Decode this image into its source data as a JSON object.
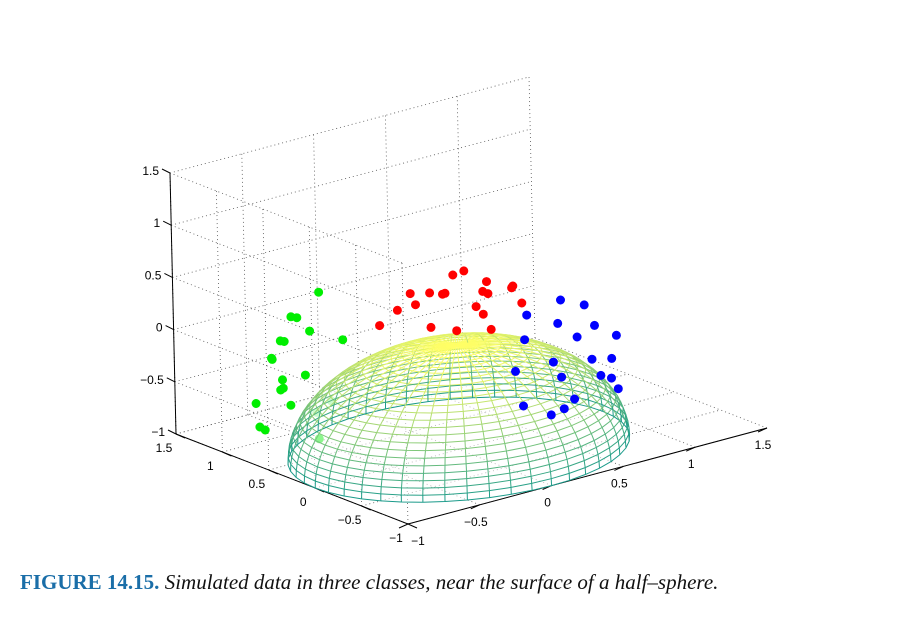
{
  "caption": {
    "label": "FIGURE 14.15.",
    "text": "Simulated data in three classes, near the surface of a half–sphere."
  },
  "chart_data": {
    "type": "scatter",
    "projection": "3d",
    "title": "",
    "xlabel": "",
    "ylabel": "",
    "zlabel": "",
    "xlim": [
      -1,
      1.5
    ],
    "ylim": [
      -1,
      1.5
    ],
    "zlim": [
      -1,
      1.5
    ],
    "x_ticks": [
      "−1",
      "−0.5",
      "0",
      "0.5",
      "1",
      "1.5"
    ],
    "y_ticks": [
      "−1",
      "−0.5",
      "0",
      "0.5",
      "1",
      "1.5"
    ],
    "z_ticks": [
      "−1",
      "−0.5",
      "0",
      "0.5",
      "1",
      "1.5"
    ],
    "grid": true,
    "surface": {
      "shape": "half-sphere",
      "center": [
        0,
        0,
        -1
      ],
      "radius": 1,
      "colormap_bottom": "#1a9a8a",
      "colormap_top": "#ffff66"
    },
    "series": [
      {
        "color": "#ff0000",
        "points": [
          [
            -0.12,
            -0.05,
            0.55
          ],
          [
            0.05,
            0.1,
            0.62
          ],
          [
            0.15,
            -0.12,
            0.48
          ],
          [
            -0.2,
            0.12,
            0.42
          ],
          [
            0.25,
            0.05,
            0.5
          ],
          [
            -0.05,
            0.2,
            0.45
          ],
          [
            0.3,
            -0.25,
            0.38
          ],
          [
            -0.3,
            -0.2,
            0.35
          ],
          [
            0.0,
            -0.3,
            0.4
          ],
          [
            0.12,
            0.3,
            0.35
          ],
          [
            -0.18,
            0.35,
            0.28
          ],
          [
            0.35,
            0.25,
            0.3
          ],
          [
            0.05,
            -0.02,
            0.7
          ],
          [
            -0.28,
            0.05,
            0.58
          ],
          [
            0.2,
            -0.3,
            0.58
          ],
          [
            0.4,
            0.0,
            0.42
          ],
          [
            -0.08,
            -0.35,
            0.52
          ],
          [
            0.1,
            0.15,
            0.05
          ],
          [
            0.18,
            -0.1,
            0.12
          ],
          [
            -0.35,
            0.28,
            0.22
          ]
        ]
      },
      {
        "color": "#0000ff",
        "points": [
          [
            0.1,
            -0.95,
            0.5
          ],
          [
            0.2,
            -1.0,
            0.35
          ],
          [
            -0.1,
            -0.9,
            0.4
          ],
          [
            0.35,
            -0.85,
            0.55
          ],
          [
            0.0,
            -1.05,
            0.2
          ],
          [
            0.3,
            -1.0,
            0.1
          ],
          [
            0.45,
            -0.8,
            0.3
          ],
          [
            -0.2,
            -0.95,
            0.15
          ],
          [
            0.15,
            -0.9,
            -0.05
          ],
          [
            0.5,
            -0.9,
            0.0
          ],
          [
            0.25,
            -0.75,
            0.6
          ],
          [
            -0.05,
            -0.85,
            0.6
          ],
          [
            0.4,
            -1.05,
            -0.1
          ],
          [
            0.6,
            -0.8,
            0.15
          ],
          [
            0.1,
            -1.0,
            -0.3
          ],
          [
            0.3,
            -0.8,
            -0.35
          ],
          [
            0.55,
            -0.7,
            -0.25
          ],
          [
            -0.15,
            -0.95,
            -0.2
          ],
          [
            0.2,
            -0.7,
            -0.5
          ],
          [
            0.7,
            -0.65,
            -0.45
          ]
        ]
      },
      {
        "color": "#00ee00",
        "points": [
          [
            -0.95,
            0.1,
            0.45
          ],
          [
            -1.0,
            0.3,
            0.3
          ],
          [
            -0.9,
            0.5,
            0.2
          ],
          [
            -0.85,
            -0.1,
            0.4
          ],
          [
            -1.05,
            0.0,
            0.1
          ],
          [
            -0.9,
            0.6,
            0.0
          ],
          [
            -0.8,
            0.75,
            -0.1
          ],
          [
            -0.95,
            0.4,
            -0.2
          ],
          [
            -0.7,
            0.8,
            -0.35
          ],
          [
            -1.0,
            -0.2,
            -0.1
          ],
          [
            -0.85,
            0.2,
            -0.4
          ],
          [
            -0.75,
            0.55,
            0.35
          ],
          [
            -0.6,
            0.85,
            0.2
          ],
          [
            -0.95,
            0.7,
            -0.45
          ],
          [
            -0.65,
            0.9,
            -0.5
          ],
          [
            -0.55,
            0.95,
            -0.7
          ],
          [
            -0.9,
            0.1,
            -0.6
          ],
          [
            -0.5,
            0.7,
            0.45
          ],
          [
            -0.8,
            0.9,
            -0.8
          ],
          [
            -0.7,
            1.0,
            -0.9
          ]
        ]
      }
    ]
  }
}
